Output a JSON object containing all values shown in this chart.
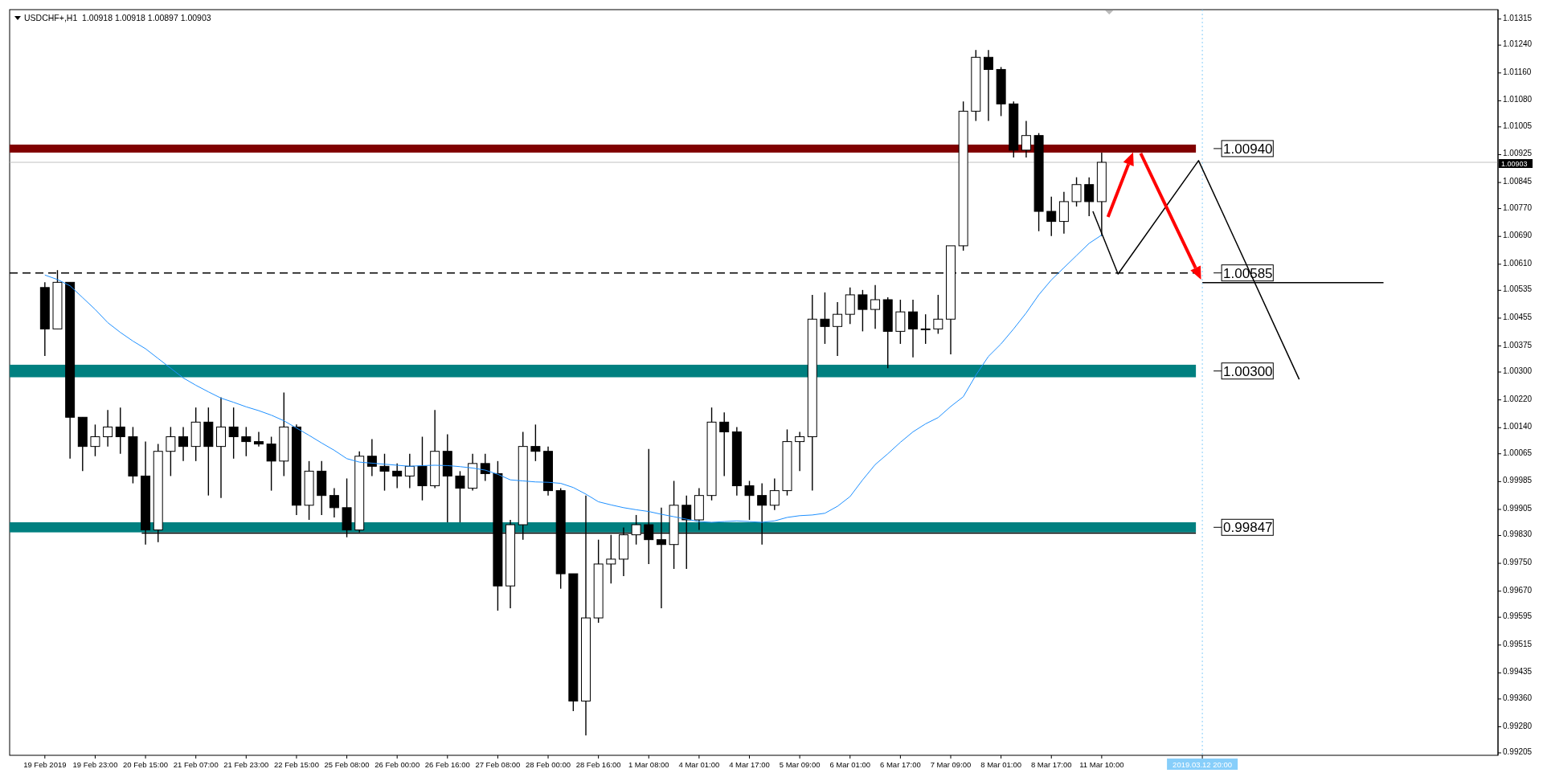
{
  "chart_data": {
    "type": "candlestick",
    "title": "USDCHF+,H1  1.00918 1.00918 1.00897 1.00903",
    "categories": [
      "19 Feb 2019",
      null,
      null,
      null,
      "19 Feb 23:00",
      null,
      null,
      null,
      "20 Feb 15:00",
      null,
      null,
      null,
      "21 Feb 07:00",
      null,
      null,
      null,
      "21 Feb 23:00",
      null,
      null,
      null,
      "22 Feb 15:00",
      null,
      null,
      null,
      "25 Feb 08:00",
      null,
      null,
      null,
      "26 Feb 00:00",
      null,
      null,
      null,
      "26 Feb 16:00",
      null,
      null,
      null,
      "27 Feb 08:00",
      null,
      null,
      null,
      "28 Feb 00:00",
      null,
      null,
      null,
      "28 Feb 16:00",
      null,
      null,
      null,
      "1 Mar 08:00",
      null,
      null,
      null,
      "4 Mar 01:00",
      null,
      null,
      null,
      "4 Mar 17:00",
      null,
      null,
      null,
      "5 Mar 09:00",
      null,
      null,
      null,
      "6 Mar 01:00",
      null,
      null,
      null,
      "6 Mar 17:00",
      null,
      null,
      null,
      "7 Mar 09:00",
      null,
      null,
      null,
      "8 Mar 01:00",
      null,
      null,
      null,
      "8 Mar 17:00",
      null,
      null,
      null,
      "11 Mar 10:00",
      null,
      null,
      null,
      null,
      null,
      null,
      null,
      "2019.03.12 20:00",
      null,
      null,
      null,
      null,
      null,
      null,
      null,
      null,
      null,
      null,
      null,
      null,
      null,
      null,
      null,
      null,
      null,
      null,
      null,
      null,
      null,
      null,
      null
    ],
    "ohlc": [
      [
        1.00543,
        1.00558,
        1.00346,
        1.00424
      ],
      [
        1.00424,
        1.00593,
        1.00424,
        1.00558
      ],
      [
        1.00558,
        1.00558,
        1.00051,
        1.0017
      ],
      [
        1.0017,
        1.0017,
        1.00015,
        1.00086
      ],
      [
        1.00086,
        1.00149,
        1.00058,
        1.00114
      ],
      [
        1.00114,
        1.00191,
        1.00086,
        1.00142
      ],
      [
        1.00142,
        1.00198,
        1.00065,
        1.00114
      ],
      [
        1.00114,
        1.00142,
        0.9998,
        1.00001
      ],
      [
        1.00001,
        1.001,
        0.99804,
        0.99846
      ],
      [
        0.99846,
        1.00093,
        0.99811,
        1.00072
      ],
      [
        1.00072,
        1.00142,
        1.00001,
        1.00114
      ],
      [
        1.00114,
        1.00142,
        1.00044,
        1.00086
      ],
      [
        1.00086,
        1.00198,
        1.00044,
        1.00156
      ],
      [
        1.00156,
        1.00198,
        0.99945,
        1.00086
      ],
      [
        1.00086,
        1.00227,
        0.99938,
        1.00142
      ],
      [
        1.00142,
        1.00198,
        1.00051,
        1.00114
      ],
      [
        1.00114,
        1.00142,
        1.00058,
        1.001
      ],
      [
        1.001,
        1.00128,
        1.00086,
        1.00093
      ],
      [
        1.00093,
        1.00114,
        0.99959,
        1.00044
      ],
      [
        1.00044,
        1.00241,
        1.00001,
        1.00142
      ],
      [
        1.00142,
        1.00149,
        0.99889,
        0.99917
      ],
      [
        0.99917,
        1.00044,
        0.99875,
        1.00015
      ],
      [
        1.00015,
        1.00044,
        0.99889,
        0.99945
      ],
      [
        0.99945,
        0.99966,
        0.99882,
        0.9991
      ],
      [
        0.9991,
        0.99994,
        0.99825,
        0.99846
      ],
      [
        0.99846,
        1.00072,
        0.99839,
        1.00058
      ],
      [
        1.00058,
        1.00107,
        1.00001,
        1.00029
      ],
      [
        1.00029,
        1.00065,
        0.99959,
        1.00015
      ],
      [
        1.00015,
        1.00037,
        0.99966,
        1.00001
      ],
      [
        1.00001,
        1.00065,
        0.99966,
        1.00029
      ],
      [
        1.00029,
        1.00114,
        0.99931,
        0.99973
      ],
      [
        0.99973,
        1.00191,
        0.99966,
        1.00072
      ],
      [
        1.00072,
        1.00121,
        0.99868,
        1.00001
      ],
      [
        1.00001,
        1.00015,
        0.99868,
        0.99966
      ],
      [
        0.99966,
        1.00065,
        0.99959,
        1.00037
      ],
      [
        1.00037,
        1.00065,
        0.99987,
        1.00008
      ],
      [
        1.00008,
        1.00044,
        0.99614,
        0.99685
      ],
      [
        0.99685,
        0.99875,
        0.99621,
        0.99861
      ],
      [
        0.99861,
        1.00128,
        0.99818,
        1.00086
      ],
      [
        1.00086,
        1.00149,
        1.00044,
        1.00072
      ],
      [
        1.00072,
        1.00086,
        0.99945,
        0.99959
      ],
      [
        0.99959,
        0.99966,
        0.99677,
        0.9972
      ],
      [
        0.9972,
        0.9972,
        0.99325,
        0.99354
      ],
      [
        0.99354,
        0.99945,
        0.99255,
        0.99593
      ],
      [
        0.99593,
        0.99818,
        0.99579,
        0.99748
      ],
      [
        0.99748,
        0.99832,
        0.99692,
        0.99762
      ],
      [
        0.99762,
        0.99853,
        0.99713,
        0.99832
      ],
      [
        0.99832,
        0.99889,
        0.99804,
        0.99861
      ],
      [
        0.99861,
        1.00079,
        0.99748,
        0.99818
      ],
      [
        0.99818,
        0.9991,
        0.99621,
        0.99804
      ],
      [
        0.99804,
        0.99987,
        0.99734,
        0.99917
      ],
      [
        0.99917,
        0.99945,
        0.99734,
        0.99875
      ],
      [
        0.99875,
        0.99966,
        0.99846,
        0.99945
      ],
      [
        0.99945,
        1.00198,
        0.99931,
        1.00156
      ],
      [
        1.00156,
        1.00184,
        1.00001,
        1.00128
      ],
      [
        1.00128,
        1.00142,
        0.99945,
        0.99973
      ],
      [
        0.99973,
        0.99987,
        0.99875,
        0.99945
      ],
      [
        0.99945,
        0.9998,
        0.99804,
        0.99917
      ],
      [
        0.99917,
        0.99994,
        0.99903,
        0.99959
      ],
      [
        0.99959,
        1.00135,
        0.99945,
        1.001
      ],
      [
        1.001,
        1.00128,
        1.00015,
        1.00114
      ],
      [
        1.00114,
        1.00522,
        0.99959,
        1.00452
      ],
      [
        1.00452,
        1.00529,
        1.00381,
        1.00431
      ],
      [
        1.00431,
        1.00501,
        1.00346,
        1.00466
      ],
      [
        1.00466,
        1.00543,
        1.00438,
        1.00522
      ],
      [
        1.00522,
        1.00536,
        1.00417,
        1.0048
      ],
      [
        1.0048,
        1.0055,
        1.00424,
        1.00508
      ],
      [
        1.00508,
        1.00515,
        1.00311,
        1.00417
      ],
      [
        1.00417,
        1.00508,
        1.00381,
        1.00473
      ],
      [
        1.00473,
        1.00508,
        1.00342,
        1.00424
      ],
      [
        1.00424,
        1.00466,
        1.00381,
        1.00424
      ],
      [
        1.00424,
        1.00522,
        1.0041,
        1.00452
      ],
      [
        1.00452,
        1.00663,
        1.00351,
        1.00663
      ],
      [
        1.00663,
        1.01078,
        1.00649,
        1.0105
      ],
      [
        1.0105,
        1.01226,
        1.01022,
        1.01205
      ],
      [
        1.01205,
        1.01226,
        1.01022,
        1.0117
      ],
      [
        1.0117,
        1.01177,
        1.01036,
        1.01071
      ],
      [
        1.01071,
        1.01078,
        1.00917,
        1.00938
      ],
      [
        1.00938,
        1.01022,
        1.00917,
        1.0098
      ],
      [
        1.0098,
        1.00987,
        1.00705,
        1.00762
      ],
      [
        1.00762,
        1.00804,
        1.00691,
        1.00733
      ],
      [
        1.00733,
        1.00818,
        1.00698,
        1.0079
      ],
      [
        1.0079,
        1.0086,
        1.00776,
        1.00839
      ],
      [
        1.00839,
        1.0086,
        1.00748,
        1.0079
      ],
      [
        1.0079,
        1.00931,
        1.00691,
        1.00903
      ],
      null,
      null,
      null,
      null,
      null,
      null,
      null,
      null,
      null,
      null,
      null,
      null,
      null,
      null,
      null,
      null,
      null,
      null,
      null,
      null,
      null,
      null,
      null,
      null,
      null,
      null,
      null,
      null,
      null,
      null,
      null
    ],
    "series": [
      {
        "type": "line",
        "color": "#1e90ff",
        "values": [
          1.00579,
          1.00566,
          1.00548,
          1.00514,
          1.0048,
          1.00442,
          1.00414,
          1.00389,
          1.00367,
          1.00339,
          1.00311,
          1.00283,
          1.00262,
          1.00243,
          1.00225,
          1.00213,
          1.002,
          1.00189,
          1.00176,
          1.0016,
          1.00139,
          1.00118,
          1.00096,
          1.00075,
          1.00051,
          1.00041,
          1.00038,
          1.00035,
          1.00032,
          1.00029,
          1.00031,
          1.00032,
          1.00031,
          1.00028,
          1.00024,
          1.00018,
          1.00006,
          0.9999,
          0.99987,
          0.99984,
          0.99983,
          0.9998,
          0.99968,
          0.99949,
          0.99927,
          0.99918,
          0.9991,
          0.99904,
          0.99899,
          0.99891,
          0.99884,
          0.99877,
          0.9987,
          0.99868,
          0.9987,
          0.99872,
          0.9987,
          0.99868,
          0.99872,
          0.99882,
          0.99887,
          0.99889,
          0.99894,
          0.99914,
          0.99942,
          0.9999,
          1.00034,
          1.00065,
          1.00098,
          1.00128,
          1.00151,
          1.00169,
          1.00201,
          1.00229,
          1.00291,
          1.00345,
          1.00381,
          1.00424,
          1.0047,
          1.00522,
          1.00565,
          1.006,
          1.00635,
          1.0067,
          1.00694,
          null,
          null,
          null,
          null,
          null,
          null,
          null,
          null,
          null,
          null,
          null,
          null,
          null,
          null,
          null,
          null,
          null,
          null,
          null,
          null,
          null,
          null,
          null,
          null,
          null,
          null,
          null,
          null,
          null,
          null,
          null
        ]
      }
    ],
    "ylim": [
      0.99198,
      1.01342
    ],
    "yticks": [
      1.01315,
      {
        "value": 1.0124,
        "label": "1.01240"
      },
      {
        "value": 1.0116,
        "label": "1.01160"
      },
      {
        "value": 1.0108,
        "label": "1.01080"
      },
      1.01005,
      1.00925,
      1.00845,
      {
        "value": 1.0077,
        "label": "1.00770"
      },
      {
        "value": 1.0069,
        "label": "1.00690"
      },
      {
        "value": 1.0061,
        "label": "1.00610"
      },
      1.00535,
      1.00455,
      1.00375,
      {
        "value": 1.003,
        "label": "1.00300"
      },
      {
        "value": 1.0022,
        "label": "1.00220"
      },
      {
        "value": 1.0014,
        "label": "1.00140"
      },
      1.00065,
      0.99985,
      0.99905,
      {
        "value": 0.9983,
        "label": "0.99830"
      },
      {
        "value": 0.9975,
        "label": "0.99750"
      },
      {
        "value": 0.9967,
        "label": "0.99670"
      },
      0.99595,
      0.99515,
      0.99435,
      {
        "value": 0.9936,
        "label": "0.99360"
      },
      {
        "value": 0.9928,
        "label": "0.99280"
      },
      0.99205
    ],
    "bands": [
      {
        "axis": "y",
        "from": 1.00931,
        "to": 1.00954,
        "label": "1.00940",
        "color": "#800000"
      },
      {
        "axis": "y",
        "from": 1.00285,
        "to": 1.00321,
        "label": "1.00300",
        "color": "#008080"
      },
      {
        "axis": "y",
        "from": 0.99839,
        "to": 0.99868,
        "label": "0.99847",
        "color": "#008080"
      }
    ],
    "ref_lines": [
      {
        "axis": "y",
        "value": 1.00903,
        "label": "1.00903",
        "color": "#c0c0c0",
        "line_style": "solid"
      },
      {
        "axis": "y",
        "value": 1.00585,
        "label": "1.00585",
        "color": "#000000",
        "line_style": "dashed"
      },
      {
        "axis": "y",
        "value": 0.99837,
        "color": "#000000",
        "line_style": "solid"
      },
      {
        "axis": "y",
        "value": 1.00557,
        "color": "#000000",
        "line_style": "solid"
      },
      {
        "axis": "x",
        "value": "2019.03.12 20:00",
        "color": "#87cefa",
        "line_style": "dotted"
      }
    ],
    "tick_labels": true
  }
}
